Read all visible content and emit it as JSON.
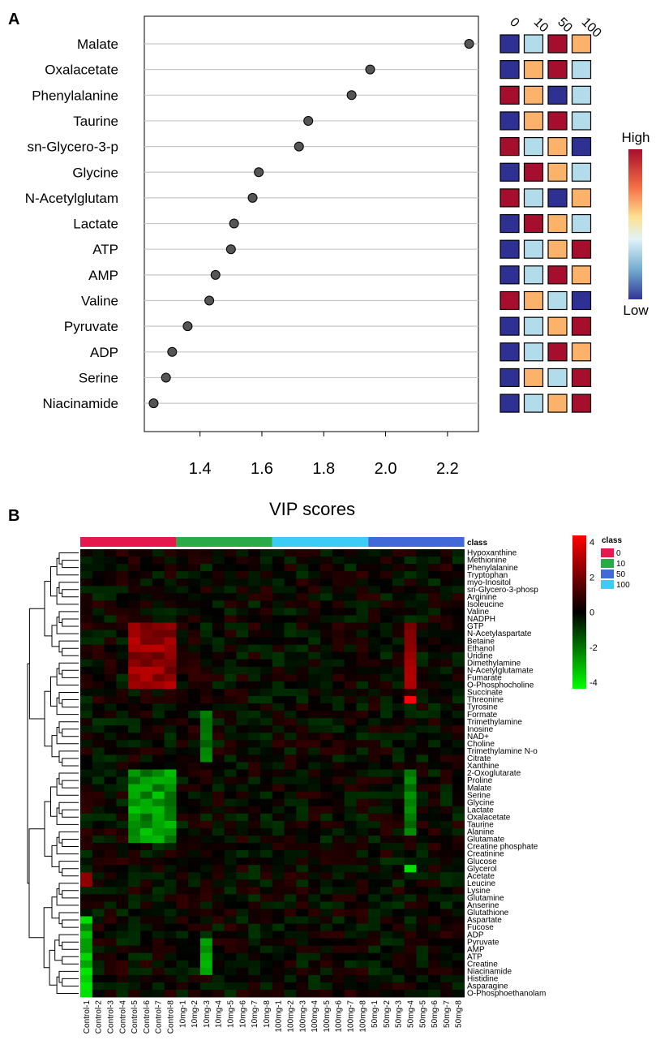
{
  "panel_a_label": "A",
  "panel_b_label": "B",
  "chart_data": [
    {
      "type": "scatter",
      "title": "",
      "xlabel": "VIP scores",
      "ylabel": "",
      "xlim": [
        1.22,
        2.3
      ],
      "xticks": [
        "1.4",
        "1.6",
        "1.8",
        "2.0",
        "2.2"
      ],
      "xtick_values": [
        1.4,
        1.6,
        1.8,
        2.0,
        2.2
      ],
      "categories": [
        "Malate",
        "Oxalacetate",
        "Phenylalanine",
        "Taurine",
        "sn-Glycero-3-p",
        "Glycine",
        "N-Acetylglutam",
        "Lactate",
        "ATP",
        "AMP",
        "Valine",
        "Pyruvate",
        "ADP",
        "Serine",
        "Niacinamide"
      ],
      "values": [
        2.27,
        1.95,
        1.89,
        1.75,
        1.72,
        1.59,
        1.57,
        1.51,
        1.5,
        1.45,
        1.43,
        1.36,
        1.31,
        1.29,
        1.25
      ],
      "group_labels": [
        "0",
        "10",
        "50",
        "100"
      ],
      "group_levels": [
        [
          "low",
          "lowmid",
          "high",
          "mid"
        ],
        [
          "low",
          "mid",
          "high",
          "lowmid"
        ],
        [
          "high",
          "mid",
          "low",
          "lowmid"
        ],
        [
          "low",
          "mid",
          "high",
          "lowmid"
        ],
        [
          "high",
          "lowmid",
          "mid",
          "low"
        ],
        [
          "low",
          "high",
          "mid",
          "lowmid"
        ],
        [
          "high",
          "lowmid",
          "low",
          "mid"
        ],
        [
          "low",
          "high",
          "mid",
          "lowmid"
        ],
        [
          "low",
          "lowmid",
          "mid",
          "high"
        ],
        [
          "low",
          "lowmid",
          "high",
          "mid"
        ],
        [
          "high",
          "mid",
          "lowmid",
          "low"
        ],
        [
          "low",
          "lowmid",
          "mid",
          "high"
        ],
        [
          "low",
          "lowmid",
          "high",
          "mid"
        ],
        [
          "low",
          "mid",
          "lowmid",
          "high"
        ],
        [
          "low",
          "lowmid",
          "mid",
          "high"
        ]
      ],
      "level_colors": {
        "low": "#2e3192",
        "lowmid": "#b3dcea",
        "mid": "#fbb36b",
        "high": "#a50f2d"
      },
      "legend": {
        "title": "High",
        "bottom": "Low",
        "placement": "right"
      },
      "grid": true
    },
    {
      "type": "heatmap",
      "title": "",
      "class_label": "class",
      "legend_title": "class",
      "classes": [
        {
          "name": "0",
          "color": "#e5194e"
        },
        {
          "name": "10",
          "color": "#2bab48"
        },
        {
          "name": "50",
          "color": "#4169d8"
        },
        {
          "name": "100",
          "color": "#3dcdf4"
        }
      ],
      "column_class_order": [
        "0",
        "10",
        "100",
        "50"
      ],
      "columns": [
        "Control-1",
        "Control-2",
        "Control-3",
        "Control-4",
        "Control-5",
        "Control-6",
        "Control-7",
        "Control-8",
        "10mg-1",
        "10mg-2",
        "10mg-3",
        "10mg-4",
        "10mg-5",
        "10mg-6",
        "10mg-7",
        "10mg-8",
        "100mg-1",
        "100mg-2",
        "100mg-3",
        "100mg-4",
        "100mg-5",
        "100mg-6",
        "100mg-7",
        "100mg-8",
        "50mg-1",
        "50mg-2",
        "50mg-3",
        "50mg-4",
        "50mg-5",
        "50mg-6",
        "50mg-7",
        "50mg-8"
      ],
      "rows": [
        "Hypoxanthine",
        "Methionine",
        "Phenylalanine",
        "Tryptophan",
        "myo-Inositol",
        "sn-Glycero-3-phosp",
        "Arginine",
        "Isoleucine",
        "Valine",
        "NADPH",
        "GTP",
        "N-Acetylaspartate",
        "Betaine",
        "Ethanol",
        "Uridine",
        "Dimethylamine",
        "N-Acetylglutamate",
        "Fumarate",
        "O-Phosphocholine",
        "Succinate",
        "Threonine",
        "Tyrosine",
        "Formate",
        "Trimethylamine",
        "Inosine",
        "NAD+",
        "Choline",
        "Trimethylamine N-o",
        "Citrate",
        "Xanthine",
        "2-Oxoglutarate",
        "Proline",
        "Malate",
        "Serine",
        "Glycine",
        "Lactate",
        "Oxalacetate",
        "Taurine",
        "Alanine",
        "Glutamate",
        "Creatine phosphate",
        "Creatinine",
        "Glucose",
        "Glycerol",
        "Acetate",
        "Leucine",
        "Lysine",
        "Glutamine",
        "Anserine",
        "Glutathione",
        "Aspartate",
        "Fucose",
        "ADP",
        "Pyruvate",
        "AMP",
        "ATP",
        "Creatine",
        "Niacinamide",
        "Histidine",
        "Asparagine",
        "O-Phosphoethanolam"
      ],
      "colorbar": {
        "min": -4,
        "max": 4,
        "ticks": [
          "4",
          "2",
          "0",
          "-2",
          "-4"
        ],
        "tick_values": [
          4,
          2,
          0,
          -2,
          -4
        ],
        "low_color": "#00ff00",
        "mid_color": "#000000",
        "high_color": "#ff0000"
      },
      "values_note": "z-scores estimated from colour intensity"
    }
  ]
}
